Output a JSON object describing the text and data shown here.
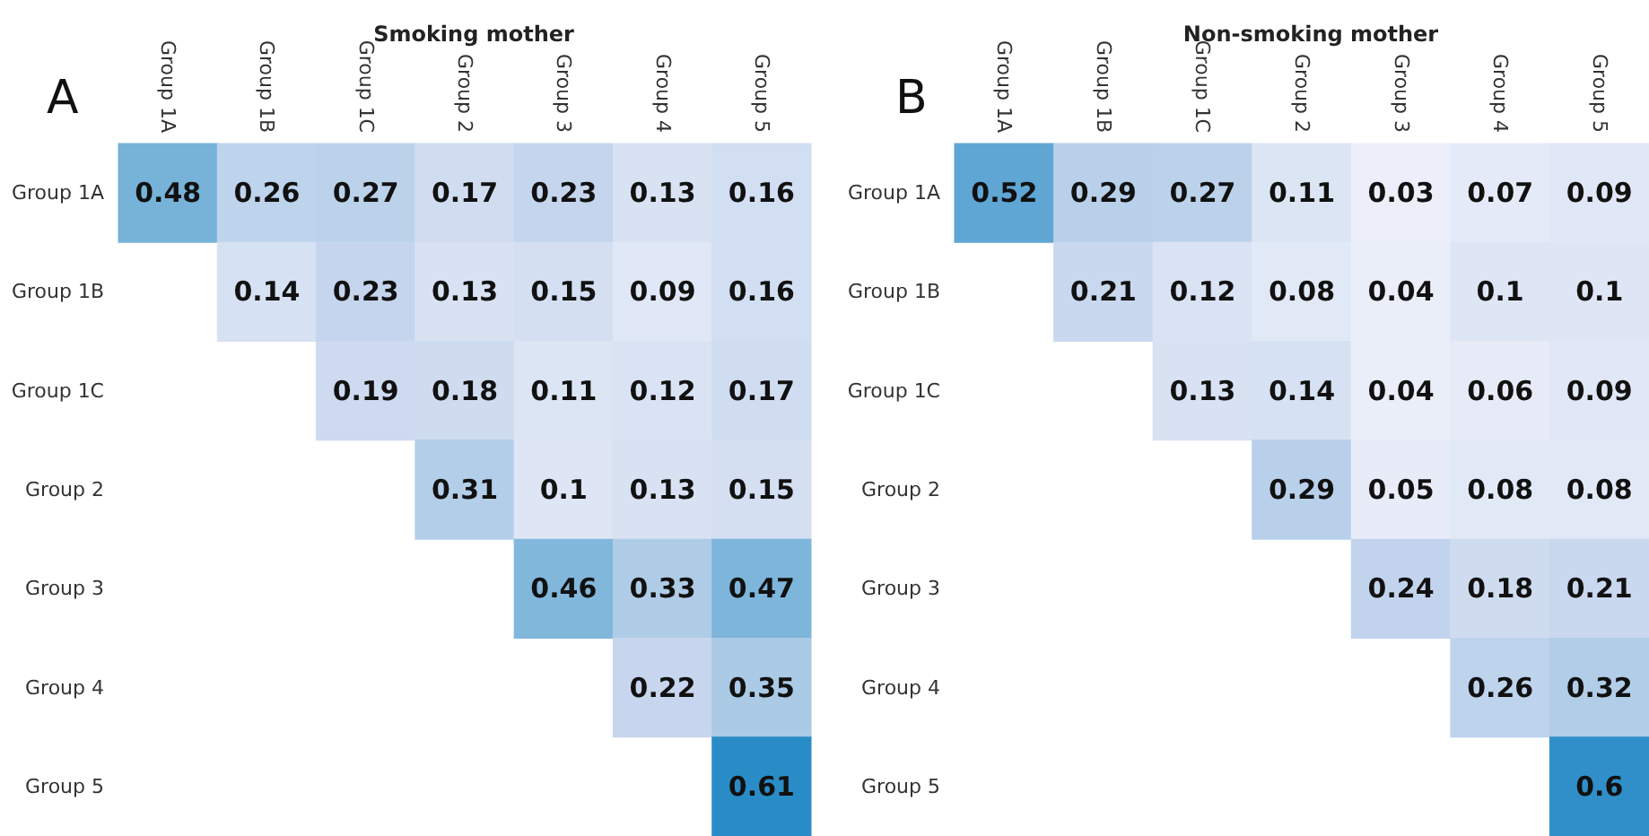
{
  "chart_data": [
    {
      "type": "heatmap",
      "title": "Smoking mother",
      "annotations": [
        "A"
      ],
      "categories": [
        "Group 1A",
        "Group 1B",
        "Group 1C",
        "Group 2",
        "Group 3",
        "Group 4",
        "Group 5"
      ],
      "y_categories": [
        "Group 1A",
        "Group 1B",
        "Group 1C",
        "Group 2",
        "Group 3",
        "Group 4",
        "Group 5"
      ],
      "cells": [
        [
          0.48,
          0.26,
          0.27,
          0.17,
          0.23,
          0.13,
          0.16
        ],
        [
          null,
          0.14,
          0.23,
          0.13,
          0.15,
          0.09,
          0.16
        ],
        [
          null,
          null,
          0.19,
          0.18,
          0.11,
          0.12,
          0.17
        ],
        [
          null,
          null,
          null,
          0.31,
          0.1,
          0.13,
          0.15
        ],
        [
          null,
          null,
          null,
          null,
          0.46,
          0.33,
          0.47
        ],
        [
          null,
          null,
          null,
          null,
          null,
          0.22,
          0.35
        ],
        [
          null,
          null,
          null,
          null,
          null,
          null,
          0.61
        ]
      ],
      "data_labels": true
    },
    {
      "type": "heatmap",
      "title": "Non-smoking mother",
      "annotations": [
        "B"
      ],
      "categories": [
        "Group 1A",
        "Group 1B",
        "Group 1C",
        "Group 2",
        "Group 3",
        "Group 4",
        "Group 5"
      ],
      "y_categories": [
        "Group 1A",
        "Group 1B",
        "Group 1C",
        "Group 2",
        "Group 3",
        "Group 4",
        "Group 5"
      ],
      "cells": [
        [
          0.52,
          0.29,
          0.27,
          0.11,
          0.03,
          0.07,
          0.09
        ],
        [
          null,
          0.21,
          0.12,
          0.08,
          0.04,
          0.1,
          0.1
        ],
        [
          null,
          null,
          0.13,
          0.14,
          0.04,
          0.06,
          0.09
        ],
        [
          null,
          null,
          null,
          0.29,
          0.05,
          0.08,
          0.08
        ],
        [
          null,
          null,
          null,
          null,
          0.24,
          0.18,
          0.21
        ],
        [
          null,
          null,
          null,
          null,
          null,
          0.26,
          0.32
        ],
        [
          null,
          null,
          null,
          null,
          null,
          null,
          0.6
        ]
      ],
      "data_labels": true
    }
  ]
}
